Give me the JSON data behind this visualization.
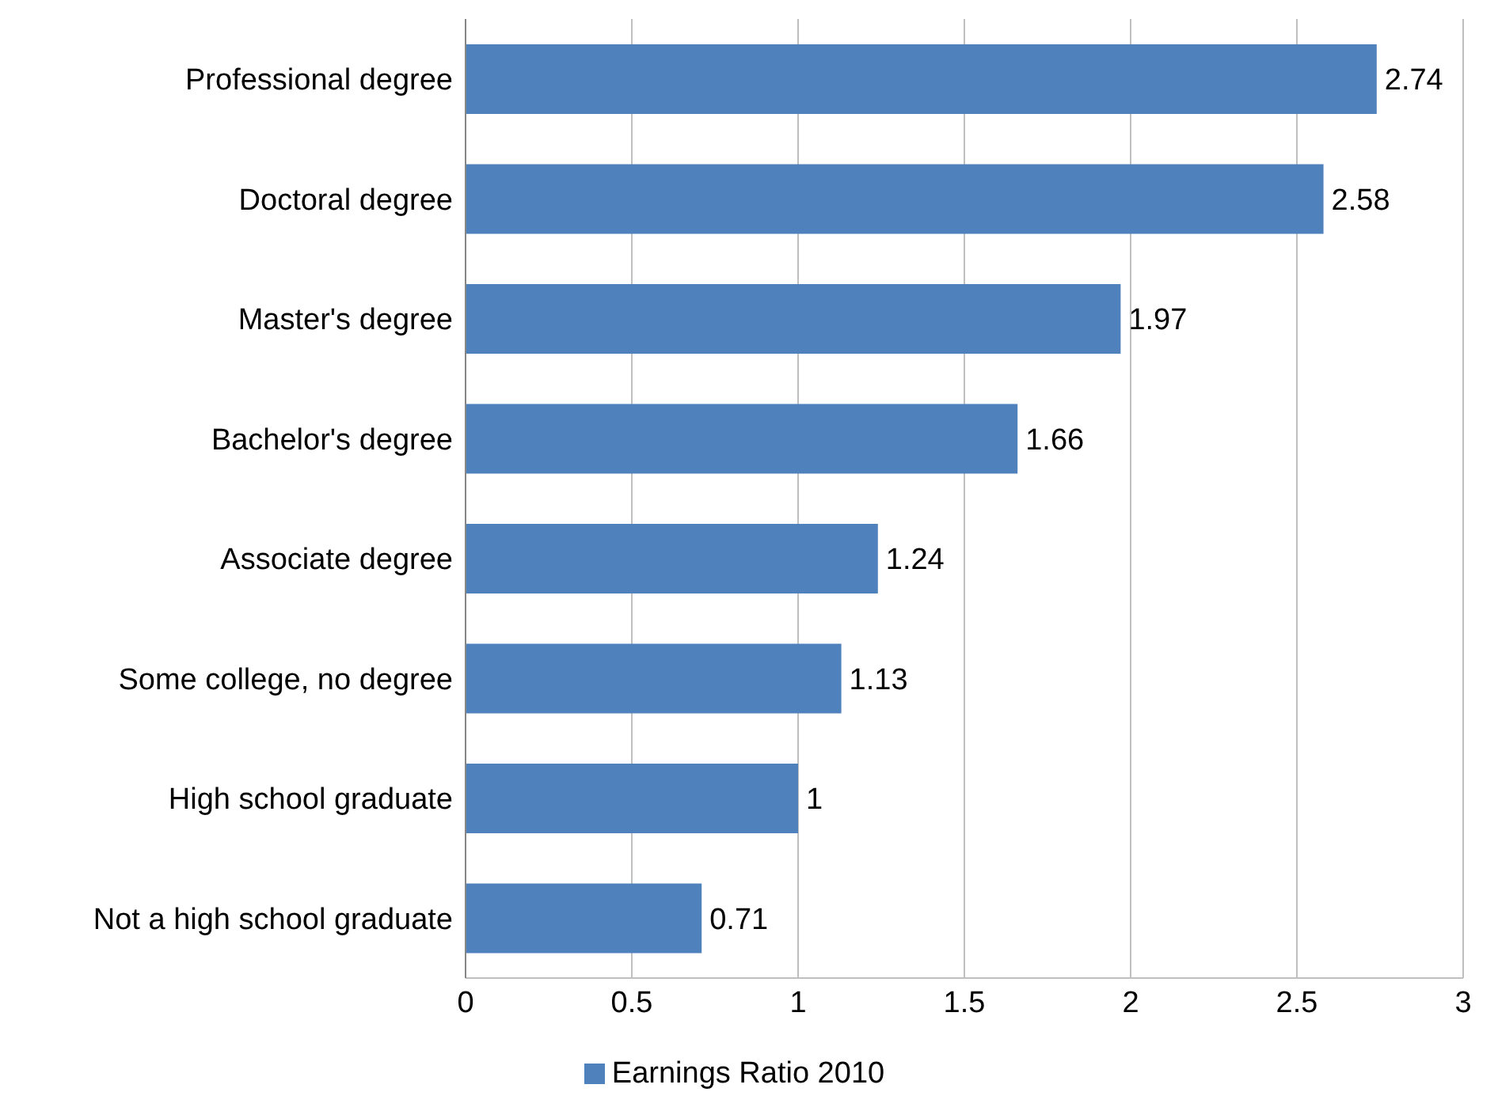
{
  "chart_data": {
    "type": "bar",
    "orientation": "horizontal",
    "categories": [
      "Professional degree",
      "Doctoral degree",
      "Master's degree",
      "Bachelor's degree",
      "Associate degree",
      "Some college, no degree",
      "High school graduate",
      "Not a high school graduate"
    ],
    "series": [
      {
        "name": "Earnings Ratio 2010",
        "color": "#4f81bd",
        "values": [
          2.74,
          2.58,
          1.97,
          1.66,
          1.24,
          1.13,
          1,
          0.71
        ]
      }
    ],
    "xlim": [
      0,
      3
    ],
    "xticks": [
      0,
      0.5,
      1,
      1.5,
      2,
      2.5,
      3
    ],
    "grid": "x",
    "legend": "bottom",
    "data_labels": true
  }
}
